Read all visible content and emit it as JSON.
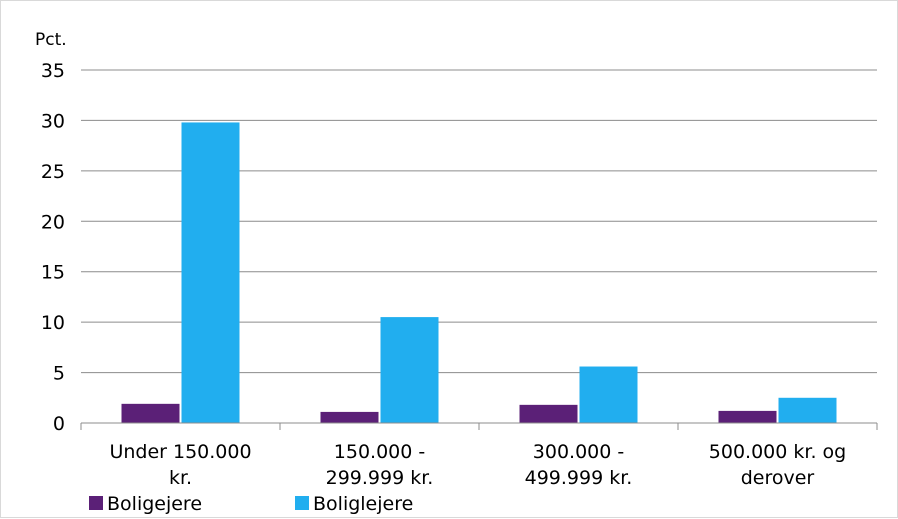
{
  "chart_data": {
    "type": "bar",
    "title": "",
    "ylabel": "Pct.",
    "xlabel": "",
    "ylim": [
      0,
      35
    ],
    "yticks": [
      0,
      5,
      10,
      15,
      20,
      25,
      30,
      35
    ],
    "grid": true,
    "legend_position": "bottom-left",
    "categories": [
      [
        "Under 150.000",
        "kr."
      ],
      [
        "150.000 -",
        "299.999 kr."
      ],
      [
        "300.000 -",
        "499.999 kr."
      ],
      [
        "500.000 kr. og",
        "derover"
      ]
    ],
    "series": [
      {
        "name": "Boligejere",
        "color": "#5b2077",
        "values": [
          1.9,
          1.1,
          1.8,
          1.2
        ]
      },
      {
        "name": "Boliglejere",
        "color": "#21aeef",
        "values": [
          29.8,
          10.5,
          5.6,
          2.5
        ]
      }
    ]
  }
}
